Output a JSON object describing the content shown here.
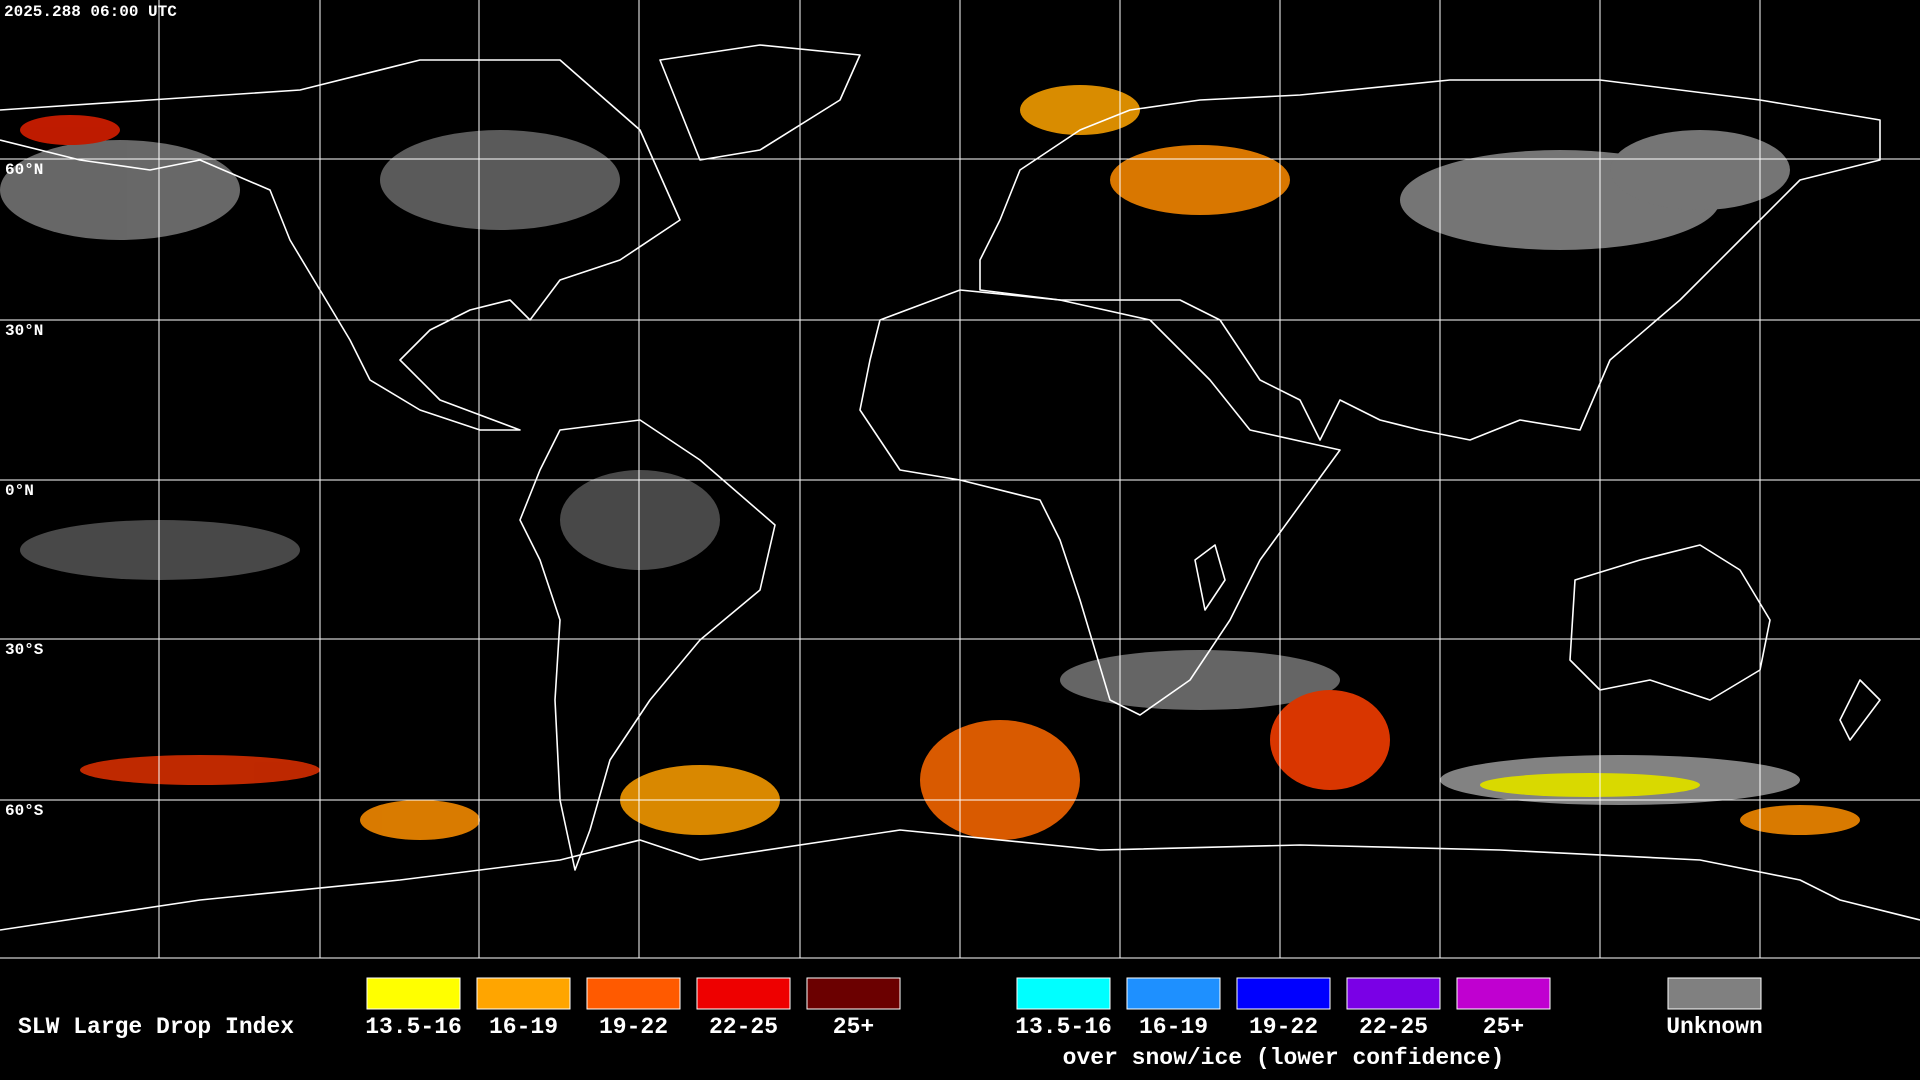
{
  "timestamp": "2025.288 06:00 UTC",
  "lat_labels": [
    "60°N",
    "30°N",
    "0°N",
    "30°S",
    "60°S"
  ],
  "legend": {
    "title": "SLW Large Drop Index",
    "groups": [
      {
        "items": [
          {
            "label": "13.5-16",
            "color": "#ffff00"
          },
          {
            "label": "16-19",
            "color": "#ffa500"
          },
          {
            "label": "19-22",
            "color": "#ff5a00"
          },
          {
            "label": "22-25",
            "color": "#ee0000"
          },
          {
            "label": "25+",
            "color": "#6b0000"
          }
        ]
      },
      {
        "items": [
          {
            "label": "13.5-16",
            "color": "#00ffff"
          },
          {
            "label": "16-19",
            "color": "#1e90ff"
          },
          {
            "label": "19-22",
            "color": "#0000ff"
          },
          {
            "label": "22-25",
            "color": "#7a00e6"
          },
          {
            "label": "25+",
            "color": "#c000d0"
          }
        ],
        "caption": "over snow/ice (lower confidence)"
      },
      {
        "items": [
          {
            "label": "Unknown",
            "color": "#808080"
          }
        ]
      }
    ]
  }
}
